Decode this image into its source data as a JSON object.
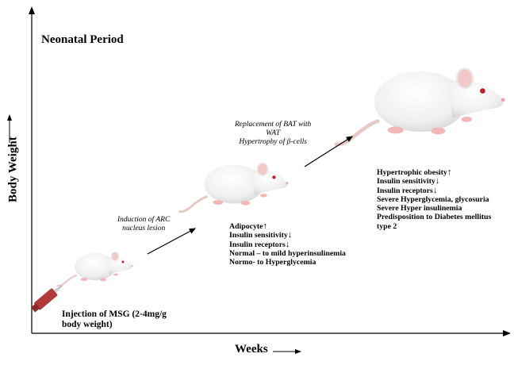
{
  "title": "Neonatal Period",
  "axes": {
    "y_label": "Body Weight",
    "x_label": "Weeks"
  },
  "injection": {
    "line1": "Injection of MSG (2-4mg/g",
    "line2": "body weight)"
  },
  "stage_annotations": [
    {
      "lines": [
        "Induction of ARC",
        "nucleus lesion"
      ]
    },
    {
      "lines": [
        "Replacement of BAT with",
        "WAT",
        "Hypertrophy of β-cells"
      ]
    }
  ],
  "effects_stage2": [
    {
      "text": "Adipocyte",
      "arrow": "↑"
    },
    {
      "text": "Insulin sensitivity",
      "arrow": "↓"
    },
    {
      "text": "Insulin receptors",
      "arrow": "↓"
    },
    {
      "text": "Normal – to mild hyperinsulinemia",
      "arrow": ""
    },
    {
      "text": "Normo- to Hyperglycemia",
      "arrow": ""
    }
  ],
  "effects_stage3": [
    {
      "text": "Hypertrophic obesity",
      "arrow": "↑"
    },
    {
      "text": "Insulin sensitivity",
      "arrow": "↓"
    },
    {
      "text": "Insulin receptors",
      "arrow": "↓"
    },
    {
      "text": "Severe Hyperglycemia, glycosuria",
      "arrow": ""
    },
    {
      "text": "Severe Hyper insulinemia",
      "arrow": ""
    },
    {
      "text": "Predisposition to Diabetes mellitus",
      "arrow": ""
    },
    {
      "text": "type 2",
      "arrow": ""
    }
  ],
  "colors": {
    "rat_fur": "#f4f4f4",
    "rat_shade": "#d9d9d9",
    "rat_pink": "#f2b8b8",
    "rat_eye": "#c0202a",
    "syringe_body": "#b03a3a"
  }
}
